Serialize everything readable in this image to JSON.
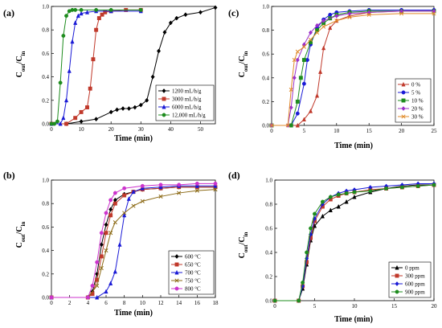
{
  "chart_data": [
    {
      "panel": "(a)",
      "type": "line",
      "xlabel": "Time (min)",
      "ylabel": "C_out/C_in",
      "xlim": [
        0,
        55
      ],
      "ylim": [
        0,
        1.0
      ],
      "xticks": [
        0,
        10,
        20,
        30,
        40,
        50
      ],
      "yticks": [
        0.0,
        0.2,
        0.4,
        0.6,
        0.8,
        1.0
      ],
      "legend_position": "bottom-right",
      "series": [
        {
          "name": "1200 mL/h/g",
          "color": "#000000",
          "marker": "diamond",
          "x": [
            0,
            5,
            10,
            15,
            20,
            22,
            24,
            26,
            28,
            30,
            32,
            34,
            36,
            38,
            40,
            42,
            45,
            50,
            55
          ],
          "y": [
            0,
            0,
            0.02,
            0.04,
            0.1,
            0.12,
            0.13,
            0.13,
            0.14,
            0.16,
            0.2,
            0.4,
            0.62,
            0.78,
            0.86,
            0.9,
            0.93,
            0.95,
            0.99
          ]
        },
        {
          "name": "3000 mL/h/g",
          "color": "#c0392b",
          "marker": "square",
          "x": [
            0,
            5,
            8,
            10,
            12,
            13,
            14,
            15,
            16,
            17,
            18,
            20,
            25,
            30
          ],
          "y": [
            0,
            0,
            0.05,
            0.1,
            0.14,
            0.3,
            0.55,
            0.8,
            0.9,
            0.93,
            0.95,
            0.96,
            0.97,
            0.97
          ]
        },
        {
          "name": "6000 mL/h/g",
          "color": "#1a1ad6",
          "marker": "triangle",
          "x": [
            0,
            3,
            4,
            5,
            6,
            7,
            8,
            9,
            10,
            12,
            15,
            20,
            30
          ],
          "y": [
            0,
            0,
            0.05,
            0.2,
            0.45,
            0.7,
            0.86,
            0.92,
            0.94,
            0.95,
            0.96,
            0.96,
            0.96
          ]
        },
        {
          "name": "12,000 mL/h/g",
          "color": "#1e8c1e",
          "marker": "circle",
          "x": [
            0,
            1,
            2,
            3,
            4,
            5,
            6,
            7,
            8,
            10,
            15,
            20,
            30
          ],
          "y": [
            0,
            0,
            0.02,
            0.35,
            0.75,
            0.92,
            0.96,
            0.97,
            0.97,
            0.97,
            0.97,
            0.97,
            0.97
          ]
        }
      ]
    },
    {
      "panel": "(b)",
      "type": "line",
      "xlabel": "Time (min)",
      "ylabel": "C_out/C_in",
      "xlim": [
        0,
        18
      ],
      "ylim": [
        0,
        1.0
      ],
      "xticks": [
        0,
        2,
        4,
        6,
        8,
        10,
        12,
        14,
        16,
        18
      ],
      "yticks": [
        0.0,
        0.2,
        0.4,
        0.6,
        0.8,
        1.0
      ],
      "legend_position": "bottom-right",
      "series": [
        {
          "name": "600 °C",
          "color": "#000000",
          "marker": "diamond",
          "x": [
            0,
            4,
            4.5,
            5,
            5.5,
            6,
            6.5,
            7,
            8,
            9,
            10,
            12,
            14,
            16,
            18
          ],
          "y": [
            0,
            0,
            0.05,
            0.2,
            0.45,
            0.62,
            0.75,
            0.83,
            0.88,
            0.9,
            0.92,
            0.93,
            0.94,
            0.94,
            0.94
          ]
        },
        {
          "name": "650 °C",
          "color": "#c0392b",
          "marker": "square",
          "x": [
            0,
            4,
            4.5,
            5,
            5.5,
            6,
            6.5,
            7,
            8,
            9,
            10,
            12,
            14,
            16,
            18
          ],
          "y": [
            0,
            0,
            0.03,
            0.15,
            0.35,
            0.55,
            0.7,
            0.8,
            0.87,
            0.9,
            0.92,
            0.93,
            0.94,
            0.94,
            0.94
          ]
        },
        {
          "name": "700 °C",
          "color": "#1a1ad6",
          "marker": "triangle",
          "x": [
            0,
            5,
            6,
            6.5,
            7,
            7.5,
            8,
            8.5,
            9,
            10,
            12,
            14,
            16,
            18
          ],
          "y": [
            0,
            0,
            0.05,
            0.12,
            0.22,
            0.45,
            0.7,
            0.84,
            0.9,
            0.93,
            0.94,
            0.95,
            0.95,
            0.95
          ]
        },
        {
          "name": "750 °C",
          "color": "#8b6914",
          "marker": "cross",
          "x": [
            0,
            4,
            5,
            5.5,
            6,
            6.5,
            7,
            8,
            9,
            10,
            12,
            14,
            16,
            18
          ],
          "y": [
            0,
            0,
            0.1,
            0.25,
            0.4,
            0.55,
            0.64,
            0.72,
            0.78,
            0.82,
            0.86,
            0.89,
            0.91,
            0.92
          ]
        },
        {
          "name": "800 °C",
          "color": "#cc33cc",
          "marker": "circle",
          "x": [
            0,
            4,
            4.5,
            5,
            5.5,
            6,
            6.5,
            7,
            8,
            10,
            12,
            14,
            16,
            18
          ],
          "y": [
            0,
            0,
            0.1,
            0.3,
            0.55,
            0.72,
            0.83,
            0.89,
            0.93,
            0.95,
            0.96,
            0.96,
            0.97,
            0.97
          ]
        }
      ]
    },
    {
      "panel": "(c)",
      "type": "line",
      "xlabel": "Time (min)",
      "ylabel": "C_out/C_in",
      "xlim": [
        0,
        25
      ],
      "ylim": [
        0,
        1.0
      ],
      "xticks": [
        0,
        5,
        10,
        15,
        20,
        25
      ],
      "yticks": [
        0.0,
        0.2,
        0.4,
        0.6,
        0.8,
        1.0
      ],
      "legend_position": "bottom-right",
      "series": [
        {
          "name": "0 %",
          "color": "#c0392b",
          "marker": "triangle",
          "x": [
            0,
            4,
            5,
            6,
            7,
            7.5,
            8,
            9,
            10,
            12,
            15,
            20,
            25
          ],
          "y": [
            0,
            0,
            0.05,
            0.12,
            0.25,
            0.45,
            0.65,
            0.82,
            0.88,
            0.92,
            0.95,
            0.96,
            0.96
          ]
        },
        {
          "name": "5 %",
          "color": "#1a1ad6",
          "marker": "circle",
          "x": [
            0,
            3,
            4,
            5,
            5.5,
            6,
            7,
            8,
            9,
            10,
            12,
            15,
            20,
            25
          ],
          "y": [
            0,
            0,
            0.1,
            0.35,
            0.55,
            0.68,
            0.82,
            0.89,
            0.93,
            0.95,
            0.96,
            0.97,
            0.97,
            0.97
          ]
        },
        {
          "name": "10 %",
          "color": "#1e8c1e",
          "marker": "square",
          "x": [
            0,
            3,
            4,
            4.5,
            5,
            6,
            7,
            8,
            9,
            10,
            12,
            15,
            20,
            25
          ],
          "y": [
            0,
            0,
            0.2,
            0.4,
            0.55,
            0.7,
            0.8,
            0.86,
            0.9,
            0.93,
            0.95,
            0.96,
            0.96,
            0.96
          ]
        },
        {
          "name": "20 %",
          "color": "#9b30c8",
          "marker": "diamond",
          "x": [
            0,
            2.5,
            3,
            3.5,
            4,
            5,
            6,
            7,
            8,
            10,
            12,
            15,
            20,
            25
          ],
          "y": [
            0,
            0,
            0.15,
            0.4,
            0.55,
            0.68,
            0.78,
            0.84,
            0.88,
            0.92,
            0.94,
            0.95,
            0.96,
            0.96
          ]
        },
        {
          "name": "30 %",
          "color": "#e08a2a",
          "marker": "cross",
          "x": [
            0,
            2.5,
            3,
            3.5,
            4,
            5,
            6,
            7,
            8,
            10,
            12,
            15,
            20,
            25
          ],
          "y": [
            0,
            0,
            0.3,
            0.55,
            0.62,
            0.66,
            0.72,
            0.78,
            0.83,
            0.88,
            0.91,
            0.93,
            0.94,
            0.94
          ]
        }
      ]
    },
    {
      "panel": "(d)",
      "type": "line",
      "xlabel": "Time (min)",
      "ylabel": "C_out/C_in",
      "xlim": [
        0,
        20
      ],
      "ylim": [
        0,
        1.0
      ],
      "xticks": [
        0,
        5,
        10,
        15,
        20
      ],
      "yticks": [
        0.0,
        0.2,
        0.4,
        0.6,
        0.8,
        1.0
      ],
      "legend_position": "bottom-right",
      "series": [
        {
          "name": "0 ppm",
          "color": "#000000",
          "marker": "triangle",
          "x": [
            0,
            3,
            3.5,
            4,
            4.5,
            5,
            6,
            7,
            8,
            9,
            10,
            12,
            14,
            16,
            18,
            20
          ],
          "y": [
            0,
            0,
            0.1,
            0.3,
            0.5,
            0.62,
            0.7,
            0.75,
            0.78,
            0.82,
            0.86,
            0.9,
            0.93,
            0.95,
            0.96,
            0.96
          ]
        },
        {
          "name": "300 ppm",
          "color": "#c0392b",
          "marker": "square",
          "x": [
            0,
            3,
            3.5,
            4,
            4.5,
            5,
            6,
            7,
            8,
            9,
            10,
            12,
            14,
            16,
            18,
            20
          ],
          "y": [
            0,
            0,
            0.12,
            0.32,
            0.52,
            0.66,
            0.78,
            0.84,
            0.87,
            0.89,
            0.9,
            0.92,
            0.93,
            0.94,
            0.95,
            0.96
          ]
        },
        {
          "name": "600 ppm",
          "color": "#1a1ad6",
          "marker": "diamond",
          "x": [
            0,
            3,
            3.5,
            4,
            4.5,
            5,
            6,
            7,
            8,
            9,
            10,
            12,
            14,
            16,
            18,
            20
          ],
          "y": [
            0,
            0,
            0.12,
            0.35,
            0.55,
            0.68,
            0.8,
            0.86,
            0.89,
            0.91,
            0.92,
            0.94,
            0.95,
            0.96,
            0.97,
            0.97
          ]
        },
        {
          "name": "900 ppm",
          "color": "#1e8c1e",
          "marker": "circle",
          "x": [
            0,
            3,
            3.5,
            4,
            4.5,
            5,
            6,
            7,
            8,
            9,
            10,
            12,
            14,
            16,
            18,
            20
          ],
          "y": [
            0,
            0,
            0.15,
            0.4,
            0.6,
            0.72,
            0.82,
            0.86,
            0.88,
            0.89,
            0.9,
            0.91,
            0.93,
            0.94,
            0.95,
            0.96
          ]
        }
      ]
    }
  ]
}
